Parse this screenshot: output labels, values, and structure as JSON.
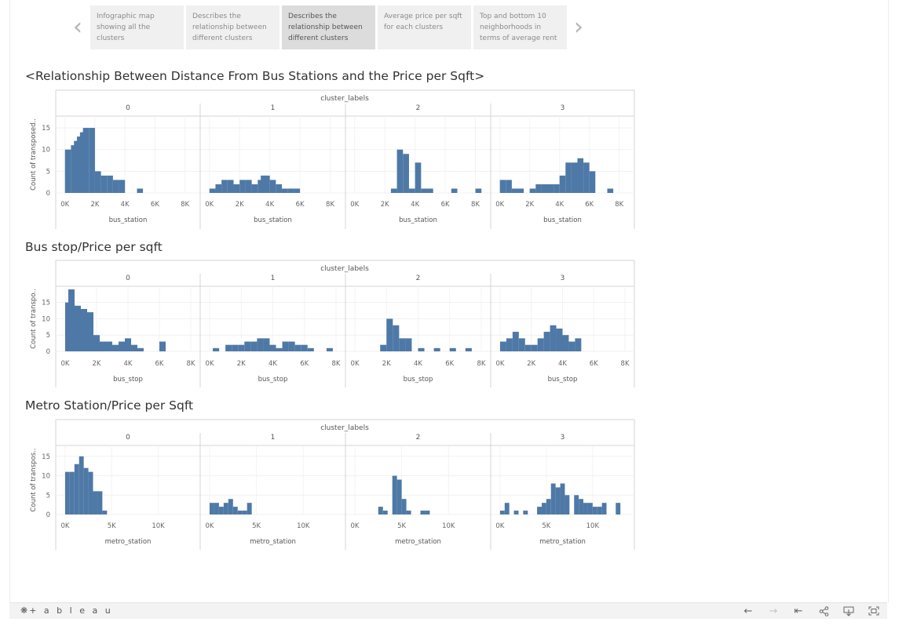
{
  "story": {
    "points": [
      {
        "label": "Infographic map showing all the clusters",
        "active": false
      },
      {
        "label": "Describes the relationship between different clusters",
        "active": false
      },
      {
        "label": "Describes the relationship between different clusters",
        "active": true
      },
      {
        "label": "Average price per sqft for each clusters",
        "active": false
      },
      {
        "label": "Top and bottom 10 neighborhoods in terms of average rent",
        "active": false
      }
    ],
    "prev_icon": "chevron-left-icon",
    "next_icon": "chevron-right-icon"
  },
  "charts": [
    {
      "title": "<Relationship Between Distance From Bus Stations and the Price per Sqft>"
    },
    {
      "title": "Bus stop/Price per sqft"
    },
    {
      "title": "Metro Station/Price per Sqft"
    }
  ],
  "chart_data": [
    {
      "type": "bar",
      "column_header": "cluster_labels",
      "panels": [
        "0",
        "1",
        "2",
        "3"
      ],
      "ylabel": "Count of transposed..",
      "xlabel": "bus_station",
      "xticks": [
        "0K",
        "2K",
        "4K",
        "6K",
        "8K"
      ],
      "yticks": [
        0,
        5,
        10,
        15
      ],
      "xlim": [
        -300,
        8700
      ],
      "ylim": [
        0,
        17
      ],
      "bin_width": 400,
      "series": [
        {
          "cluster": "0",
          "bins": [
            [
              0,
              10
            ],
            [
              400,
              11
            ],
            [
              600,
              12
            ],
            [
              800,
              13
            ],
            [
              1000,
              14
            ],
            [
              1200,
              15
            ],
            [
              1600,
              15
            ],
            [
              2000,
              5
            ],
            [
              2400,
              4
            ],
            [
              2800,
              4
            ],
            [
              3200,
              3
            ],
            [
              3600,
              3
            ],
            [
              4800,
              1
            ]
          ]
        },
        {
          "cluster": "1",
          "bins": [
            [
              0,
              1
            ],
            [
              400,
              2
            ],
            [
              800,
              3
            ],
            [
              1200,
              3
            ],
            [
              1600,
              2
            ],
            [
              2000,
              3
            ],
            [
              2400,
              3
            ],
            [
              2800,
              2
            ],
            [
              3200,
              3
            ],
            [
              3400,
              4
            ],
            [
              3600,
              4
            ],
            [
              4000,
              3
            ],
            [
              4400,
              2
            ],
            [
              4800,
              1
            ],
            [
              5200,
              1
            ],
            [
              5600,
              1
            ]
          ]
        },
        {
          "cluster": "2",
          "bins": [
            [
              2400,
              1
            ],
            [
              2800,
              10
            ],
            [
              3200,
              9
            ],
            [
              3600,
              1
            ],
            [
              4000,
              7
            ],
            [
              4400,
              1
            ],
            [
              4800,
              1
            ],
            [
              6400,
              1
            ],
            [
              8000,
              1
            ]
          ]
        },
        {
          "cluster": "3",
          "bins": [
            [
              0,
              3
            ],
            [
              400,
              3
            ],
            [
              800,
              1
            ],
            [
              1200,
              1
            ],
            [
              2000,
              1
            ],
            [
              2400,
              2
            ],
            [
              2800,
              2
            ],
            [
              3200,
              2
            ],
            [
              3600,
              2
            ],
            [
              4000,
              4
            ],
            [
              4400,
              7
            ],
            [
              4800,
              7
            ],
            [
              5200,
              8
            ],
            [
              5600,
              7
            ],
            [
              6000,
              5
            ],
            [
              7200,
              1
            ]
          ]
        }
      ]
    },
    {
      "type": "bar",
      "column_header": "cluster_labels",
      "panels": [
        "0",
        "1",
        "2",
        "3"
      ],
      "ylabel": "Count of transpo..",
      "xlabel": "bus_stop",
      "xticks": [
        "0K",
        "2K",
        "4K",
        "6K",
        "8K"
      ],
      "yticks": [
        0,
        5,
        10,
        15
      ],
      "xlim": [
        -300,
        8300
      ],
      "ylim": [
        0,
        19
      ],
      "bin_width": 400,
      "series": [
        {
          "cluster": "0",
          "bins": [
            [
              0,
              15
            ],
            [
              200,
              19
            ],
            [
              600,
              14
            ],
            [
              1000,
              13
            ],
            [
              1400,
              12
            ],
            [
              1800,
              5
            ],
            [
              2200,
              3
            ],
            [
              2600,
              3
            ],
            [
              3000,
              2
            ],
            [
              3400,
              3
            ],
            [
              3800,
              4
            ],
            [
              4200,
              2
            ],
            [
              4600,
              1
            ],
            [
              6000,
              3
            ]
          ]
        },
        {
          "cluster": "1",
          "bins": [
            [
              200,
              1
            ],
            [
              1000,
              2
            ],
            [
              1400,
              2
            ],
            [
              1800,
              2
            ],
            [
              2200,
              3
            ],
            [
              2600,
              3
            ],
            [
              3000,
              4
            ],
            [
              3400,
              4
            ],
            [
              3800,
              2
            ],
            [
              4200,
              1
            ],
            [
              4600,
              3
            ],
            [
              5000,
              3
            ],
            [
              5400,
              2
            ],
            [
              5800,
              2
            ],
            [
              6200,
              1
            ],
            [
              7400,
              1
            ]
          ]
        },
        {
          "cluster": "2",
          "bins": [
            [
              1600,
              2
            ],
            [
              2000,
              10
            ],
            [
              2400,
              8
            ],
            [
              2800,
              4
            ],
            [
              3200,
              4
            ],
            [
              4000,
              1
            ],
            [
              5000,
              1
            ],
            [
              6000,
              1
            ],
            [
              7000,
              1
            ]
          ]
        },
        {
          "cluster": "3",
          "bins": [
            [
              0,
              3
            ],
            [
              400,
              4
            ],
            [
              800,
              6
            ],
            [
              1200,
              4
            ],
            [
              1600,
              2
            ],
            [
              2000,
              2
            ],
            [
              2400,
              4
            ],
            [
              2800,
              6
            ],
            [
              3200,
              8
            ],
            [
              3600,
              7
            ],
            [
              4000,
              5
            ],
            [
              4400,
              3
            ],
            [
              4800,
              4
            ]
          ]
        }
      ]
    },
    {
      "type": "bar",
      "column_header": "cluster_labels",
      "panels": [
        "0",
        "1",
        "2",
        "3"
      ],
      "ylabel": "Count of transpos..",
      "xlabel": "metro_station",
      "xticks": [
        "0K",
        "5K",
        "10K"
      ],
      "yticks": [
        0,
        5,
        10,
        15
      ],
      "xlim": [
        -500,
        14000
      ],
      "ylim": [
        0,
        17
      ],
      "bin_width": 500,
      "series": [
        {
          "cluster": "0",
          "bins": [
            [
              0,
              11
            ],
            [
              500,
              11
            ],
            [
              1000,
              13
            ],
            [
              1500,
              15
            ],
            [
              2000,
              12
            ],
            [
              2500,
              11
            ],
            [
              3000,
              6
            ],
            [
              3500,
              6
            ],
            [
              4000,
              1
            ]
          ]
        },
        {
          "cluster": "1",
          "bins": [
            [
              0,
              3
            ],
            [
              500,
              3
            ],
            [
              1000,
              2
            ],
            [
              1500,
              3
            ],
            [
              2000,
              4
            ],
            [
              2500,
              2
            ],
            [
              3000,
              1
            ],
            [
              3500,
              1
            ],
            [
              4000,
              3
            ]
          ]
        },
        {
          "cluster": "2",
          "bins": [
            [
              2500,
              2
            ],
            [
              3000,
              1
            ],
            [
              4000,
              10
            ],
            [
              4500,
              9
            ],
            [
              5000,
              4
            ],
            [
              5500,
              1
            ],
            [
              7000,
              1
            ],
            [
              7500,
              1
            ]
          ]
        },
        {
          "cluster": "3",
          "bins": [
            [
              0,
              1
            ],
            [
              500,
              3
            ],
            [
              1500,
              1
            ],
            [
              2500,
              1
            ],
            [
              4000,
              2
            ],
            [
              4500,
              3
            ],
            [
              5000,
              4
            ],
            [
              5500,
              8
            ],
            [
              6000,
              7
            ],
            [
              6500,
              8
            ],
            [
              7000,
              5
            ],
            [
              8000,
              5
            ],
            [
              8500,
              4
            ],
            [
              9000,
              3
            ],
            [
              9500,
              3
            ],
            [
              10000,
              2
            ],
            [
              10500,
              2
            ],
            [
              11000,
              3
            ],
            [
              12500,
              3
            ]
          ]
        }
      ]
    }
  ],
  "toolbar": {
    "brand": "+ a b l e a u",
    "brand_icon": "tableau-logo-icon",
    "icons": [
      "undo-icon",
      "redo-icon",
      "revert-icon",
      "share-icon",
      "download-icon",
      "fullscreen-icon"
    ]
  },
  "colors": {
    "bar": "#4e79a7",
    "grid": "#e6e6e6",
    "divider": "#d4d4d4",
    "tick_text": "#666666"
  }
}
